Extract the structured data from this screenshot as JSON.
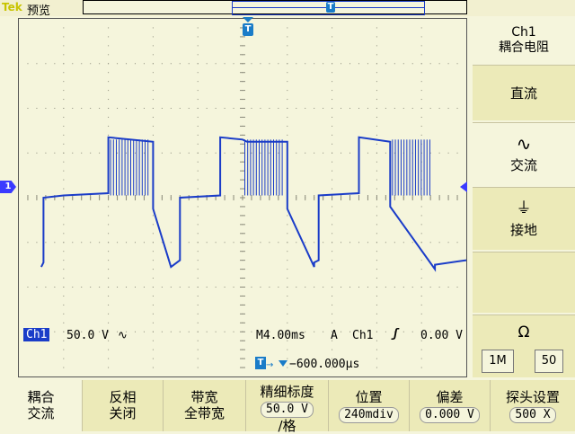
{
  "topbar": {
    "brand": "Tek",
    "status": "预览",
    "trigger_marker": "T"
  },
  "screen": {
    "trigger_position_marker": "T",
    "channel_marker": "1"
  },
  "readout": {
    "ch1_label": "Ch1",
    "ch1_scale": "50.0 V",
    "ch1_coupling_symbol": "∿",
    "timebase": "M4.00ms",
    "trigger_mode": "A",
    "trigger_source": "Ch1",
    "trigger_slope_symbol": "ʃ",
    "trigger_level": "0.00 V",
    "delay_marker": "T",
    "delay_arrow": "→",
    "delay_value": "−600.000µs"
  },
  "side_menu": {
    "title_line1": "Ch1",
    "title_line2": "耦合电阻",
    "items": [
      {
        "label": "直流",
        "icon": ""
      },
      {
        "label": "交流",
        "icon": "∿"
      },
      {
        "label": "接地",
        "icon": "⏚"
      }
    ],
    "impedance_symbol": "Ω",
    "impedance_options": [
      "1M",
      "50"
    ]
  },
  "bottom_menu": [
    {
      "line1": "耦合",
      "line2": "交流",
      "value": ""
    },
    {
      "line1": "反相",
      "line2": "关闭",
      "value": ""
    },
    {
      "line1": "带宽",
      "line2": "全带宽",
      "value": ""
    },
    {
      "line1": "精细标度",
      "line2": "/格",
      "value": "50.0 V"
    },
    {
      "line1": "位置",
      "line2": "",
      "value": "240mdiv"
    },
    {
      "line1": "偏差",
      "line2": "",
      "value": "0.000 V"
    },
    {
      "line1": "探头设置",
      "line2": "",
      "value": "500 X"
    }
  ],
  "colors": {
    "background": "#f5f5dc",
    "trace": "#1a3cc8",
    "grid": "#8a8a7a",
    "marker": "#1a7cc8"
  },
  "chart_data": {
    "type": "line",
    "title": "",
    "xlabel": "",
    "ylabel": "",
    "x_divisions": 10,
    "y_divisions": 8,
    "xlim": [
      -5,
      5
    ],
    "ylim": [
      -4,
      4
    ],
    "series": [
      {
        "name": "Ch1",
        "x": [
          -4.5,
          -4.45,
          -4.45,
          -4.0,
          -3.0,
          -3.0,
          -2.0,
          -2.0,
          -1.6,
          -1.4,
          -1.4,
          -0.5,
          -0.5,
          0.0,
          0.1,
          1.0,
          1.0,
          1.6,
          1.6,
          1.7,
          1.7,
          2.6,
          2.6,
          3.3,
          3.3,
          4.3,
          4.3,
          5.0
        ],
        "y": [
          -1.55,
          -1.45,
          0.0,
          0.05,
          0.1,
          1.35,
          1.25,
          -0.25,
          -1.55,
          -1.4,
          0.0,
          0.05,
          1.35,
          1.3,
          1.25,
          1.25,
          -0.25,
          -1.55,
          -1.45,
          -1.4,
          0.05,
          0.1,
          1.35,
          1.25,
          -0.2,
          -1.6,
          -1.5,
          -1.4
        ]
      }
    ]
  }
}
